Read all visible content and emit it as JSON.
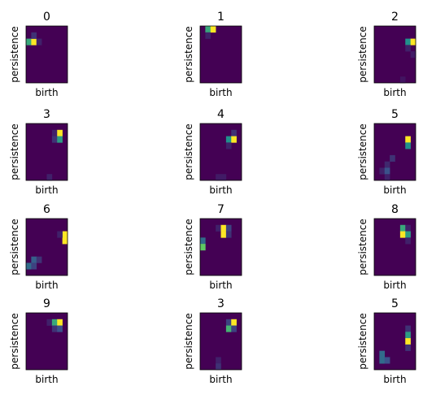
{
  "chart_data": {
    "type": "heatmap",
    "grid_rows": 4,
    "grid_cols": 3,
    "cell_resolution": 8,
    "colormap": "viridis",
    "axes_ticks": false,
    "xlabel": "birth",
    "ylabel": "persistence",
    "panels": [
      {
        "title": "0",
        "cells": [
          [
            2,
            0,
            0.6
          ],
          [
            2,
            1,
            1.0
          ],
          [
            1,
            1,
            0.15
          ],
          [
            2,
            2,
            0.1
          ]
        ]
      },
      {
        "title": "1",
        "cells": [
          [
            0,
            1,
            0.6
          ],
          [
            0,
            2,
            1.0
          ],
          [
            1,
            1,
            0.1
          ]
        ]
      },
      {
        "title": "2",
        "cells": [
          [
            2,
            6,
            0.5
          ],
          [
            2,
            7,
            1.0
          ],
          [
            3,
            6,
            0.1
          ],
          [
            4,
            7,
            0.08
          ],
          [
            8,
            5,
            0.06
          ]
        ]
      },
      {
        "title": "3",
        "cells": [
          [
            1,
            5,
            0.1
          ],
          [
            1,
            6,
            1.0
          ],
          [
            2,
            5,
            0.15
          ],
          [
            2,
            6,
            0.55
          ],
          [
            8,
            4,
            0.1
          ]
        ]
      },
      {
        "title": "4",
        "cells": [
          [
            1,
            6,
            0.15
          ],
          [
            2,
            5,
            0.5
          ],
          [
            2,
            6,
            1.0
          ],
          [
            3,
            5,
            0.1
          ],
          [
            8,
            3,
            0.08
          ],
          [
            8,
            4,
            0.08
          ]
        ]
      },
      {
        "title": "5",
        "cells": [
          [
            2,
            6,
            1.0
          ],
          [
            3,
            6,
            0.5
          ],
          [
            5,
            3,
            0.15
          ],
          [
            6,
            2,
            0.12
          ],
          [
            7,
            1,
            0.1
          ],
          [
            7,
            2,
            0.25
          ],
          [
            8,
            2,
            0.1
          ]
        ]
      },
      {
        "title": "6",
        "cells": [
          [
            2,
            7,
            1.0
          ],
          [
            3,
            7,
            1.0
          ],
          [
            2,
            6,
            0.1
          ],
          [
            6,
            1,
            0.3
          ],
          [
            6,
            2,
            0.15
          ],
          [
            7,
            0,
            0.35
          ],
          [
            7,
            1,
            0.2
          ]
        ]
      },
      {
        "title": "7",
        "cells": [
          [
            1,
            3,
            0.1
          ],
          [
            1,
            4,
            1.0
          ],
          [
            2,
            4,
            1.0
          ],
          [
            1,
            5,
            0.2
          ],
          [
            2,
            5,
            0.15
          ],
          [
            3,
            0,
            0.35
          ],
          [
            4,
            0,
            0.75
          ]
        ]
      },
      {
        "title": "8",
        "cells": [
          [
            1,
            5,
            0.6
          ],
          [
            1,
            6,
            0.1
          ],
          [
            2,
            5,
            1.0
          ],
          [
            2,
            6,
            0.55
          ],
          [
            3,
            6,
            0.1
          ]
        ]
      },
      {
        "title": "9",
        "cells": [
          [
            1,
            4,
            0.1
          ],
          [
            1,
            5,
            0.6
          ],
          [
            1,
            6,
            1.0
          ],
          [
            2,
            5,
            0.15
          ],
          [
            2,
            6,
            0.25
          ]
        ]
      },
      {
        "title": "3",
        "cells": [
          [
            1,
            5,
            0.2
          ],
          [
            1,
            6,
            1.0
          ],
          [
            2,
            5,
            0.65
          ],
          [
            2,
            6,
            0.2
          ],
          [
            7,
            3,
            0.1
          ],
          [
            8,
            3,
            0.15
          ]
        ]
      },
      {
        "title": "5",
        "cells": [
          [
            2,
            6,
            0.15
          ],
          [
            3,
            6,
            0.55
          ],
          [
            4,
            6,
            1.0
          ],
          [
            5,
            6,
            0.15
          ],
          [
            6,
            1,
            0.35
          ],
          [
            7,
            1,
            0.35
          ],
          [
            7,
            2,
            0.25
          ]
        ]
      }
    ]
  }
}
